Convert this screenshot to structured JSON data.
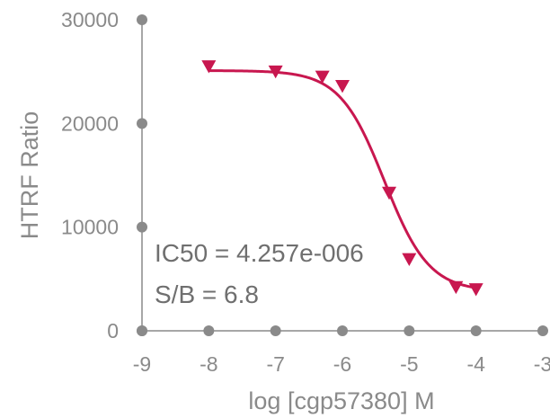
{
  "chart_data": {
    "type": "scatter",
    "xlabel": "log [cgp57380] M",
    "ylabel": "HTRF Ratio",
    "xlim": [
      -9,
      -3
    ],
    "ylim": [
      0,
      30000
    ],
    "x_ticks": [
      "-9",
      "-8",
      "-7",
      "-6",
      "-5",
      "-4",
      "-3"
    ],
    "y_ticks": [
      "0",
      "10000",
      "20000",
      "30000"
    ],
    "grid": false,
    "legend": "none",
    "series": [
      {
        "marker": "triangle-down",
        "color": "#c8174f",
        "x": [
          -8,
          -7,
          -6.3,
          -6,
          -5.3,
          -5,
          -4.3,
          -4
        ],
        "y": [
          25500,
          25000,
          24500,
          23600,
          13300,
          6900,
          4200,
          4000
        ],
        "fit": {
          "model": "4PL",
          "top": 25100,
          "bottom": 3800,
          "log_ic50": -5.371,
          "hill": 1.3
        }
      }
    ],
    "annotations": [
      "IC50 = 4.257e-006",
      "S/B = 6.8"
    ]
  }
}
